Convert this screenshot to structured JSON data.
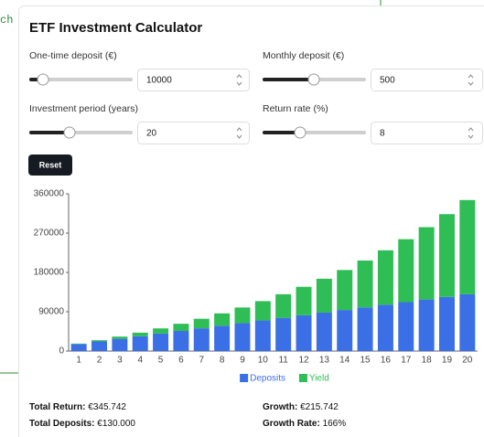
{
  "fragment": "ch",
  "title": "ETF Investment Calculator",
  "fields": [
    {
      "label": "One-time deposit (€)",
      "value": "10000"
    },
    {
      "label": "Monthly deposit (€)",
      "value": "500"
    },
    {
      "label": "Investment period (years)",
      "value": "20"
    },
    {
      "label": "Return rate (%)",
      "value": "8"
    }
  ],
  "reset": "Reset",
  "chart_data": {
    "type": "stacked_bar",
    "categories": [
      "1",
      "2",
      "3",
      "4",
      "5",
      "6",
      "7",
      "8",
      "9",
      "10",
      "11",
      "12",
      "13",
      "14",
      "15",
      "16",
      "17",
      "18",
      "19",
      "20"
    ],
    "series": [
      {
        "name": "Deposits",
        "color": "#3b6fe6",
        "values": [
          16000,
          22000,
          28000,
          34000,
          40000,
          46000,
          52000,
          58000,
          64000,
          70000,
          76000,
          82000,
          88000,
          94000,
          100000,
          106000,
          112000,
          118000,
          124000,
          130000
        ]
      },
      {
        "name": "Yield",
        "color": "#2fbd55",
        "values": [
          1096,
          2782,
          5105,
          8120,
          11883,
          16455,
          21904,
          28306,
          35735,
          44282,
          54032,
          65091,
          77565,
          91572,
          107243,
          124710,
          144127,
          165652,
          189463,
          215742
        ]
      }
    ],
    "ylim": [
      0,
      360000
    ],
    "yticks": [
      0,
      90000,
      180000,
      270000,
      360000
    ],
    "grid": false,
    "legend": "bottom"
  },
  "summary": [
    {
      "label": "Total Return:",
      "value": "€345.742"
    },
    {
      "label": "Growth:",
      "value": "€215.742"
    },
    {
      "label": "Total Deposits:",
      "value": "€130.000"
    },
    {
      "label": "Growth Rate:",
      "value": "166%"
    }
  ]
}
